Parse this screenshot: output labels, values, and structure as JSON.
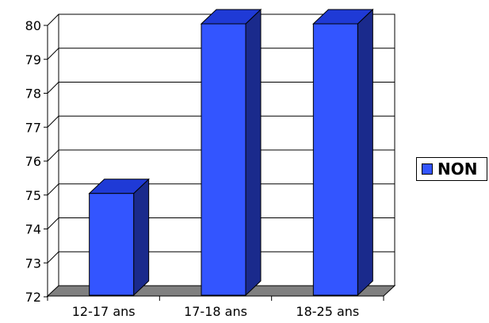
{
  "chart_data": {
    "type": "bar",
    "categories": [
      "12-17 ans",
      "17-18 ans",
      "18-25 ans"
    ],
    "series": [
      {
        "name": "NON",
        "values": [
          75,
          80,
          80
        ]
      }
    ],
    "ylim": [
      72,
      80
    ],
    "yticks": [
      72,
      73,
      74,
      75,
      76,
      77,
      78,
      79,
      80
    ],
    "grid": true,
    "legend_position": "right",
    "colors": {
      "bar_front": "#3355ff",
      "bar_side": "#1a2a8c",
      "bar_top": "#1f3ad6",
      "floor": "#808080",
      "grid": "#000000"
    }
  }
}
